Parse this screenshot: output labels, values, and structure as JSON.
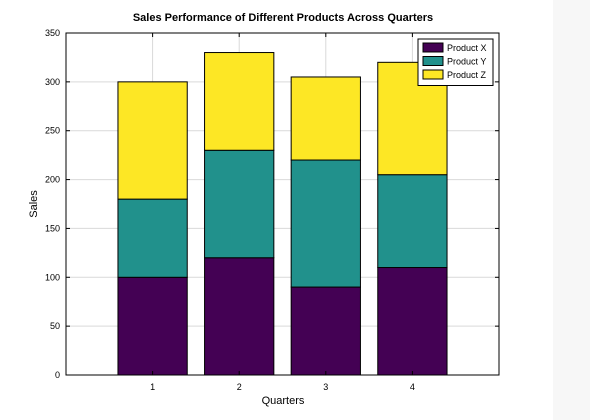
{
  "chart_data": {
    "type": "bar",
    "stacked": true,
    "title": "Sales Performance of Different Products Across Quarters",
    "xlabel": "Quarters",
    "ylabel": "Sales",
    "categories": [
      "1",
      "2",
      "3",
      "4"
    ],
    "series": [
      {
        "name": "Product X",
        "values": [
          100,
          120,
          90,
          110
        ],
        "color": "#440154"
      },
      {
        "name": "Product Y",
        "values": [
          80,
          110,
          130,
          95
        ],
        "color": "#21918c"
      },
      {
        "name": "Product Z",
        "values": [
          120,
          100,
          85,
          115
        ],
        "color": "#fde725"
      }
    ],
    "ylim": [
      0,
      350
    ],
    "yticks": [
      "0",
      "50",
      "100",
      "150",
      "200",
      "250",
      "300",
      "350"
    ],
    "grid": true,
    "legend_position": "top-right"
  }
}
